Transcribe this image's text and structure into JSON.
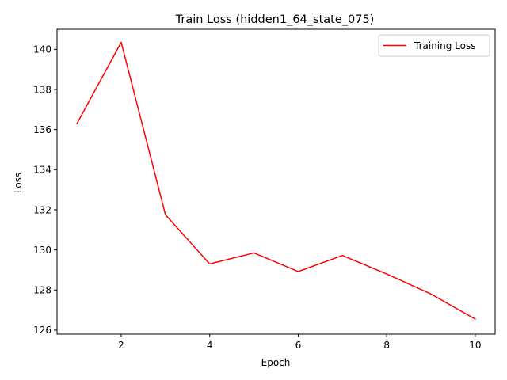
{
  "chart_data": {
    "type": "line",
    "title": "Train Loss (hidden1_64_state_075)",
    "xlabel": "Epoch",
    "ylabel": "Loss",
    "x": [
      1,
      2,
      3,
      4,
      5,
      6,
      7,
      8,
      9,
      10
    ],
    "series": [
      {
        "name": "Training Loss",
        "color": "#ff0000",
        "values": [
          136.3,
          140.35,
          131.75,
          129.3,
          129.85,
          128.92,
          129.72,
          128.8,
          127.8,
          126.55
        ]
      }
    ],
    "xlim": [
      0.55,
      10.45
    ],
    "ylim": [
      125.8,
      141.0
    ],
    "xticks": [
      2,
      4,
      6,
      8,
      10
    ],
    "yticks": [
      126,
      128,
      130,
      132,
      134,
      136,
      138,
      140
    ],
    "grid": false,
    "legend_position": "top-right"
  }
}
